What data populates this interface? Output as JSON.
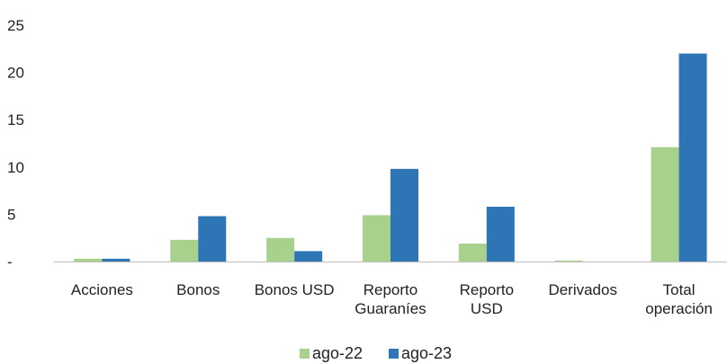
{
  "chart_data": {
    "type": "bar",
    "categories": [
      [
        "Acciones"
      ],
      [
        "Bonos"
      ],
      [
        "Bonos USD"
      ],
      [
        "Reporto",
        "Guaraníes"
      ],
      [
        "Reporto",
        "USD"
      ],
      [
        "Derivados"
      ],
      [
        "Total",
        "operación"
      ]
    ],
    "series": [
      {
        "name": "ago-22",
        "color": "#a9d18e",
        "values": [
          0.3,
          2.3,
          2.5,
          4.9,
          1.9,
          0.1,
          12.1
        ]
      },
      {
        "name": "ago-23",
        "color": "#2e75b6",
        "values": [
          0.3,
          4.8,
          1.1,
          9.8,
          5.8,
          0.0,
          22.0
        ]
      }
    ],
    "y_ticks": [
      "-",
      "5",
      "10",
      "15",
      "20",
      "25"
    ],
    "ylim": [
      0,
      25
    ],
    "grid": false,
    "legend_position": "bottom-center"
  }
}
